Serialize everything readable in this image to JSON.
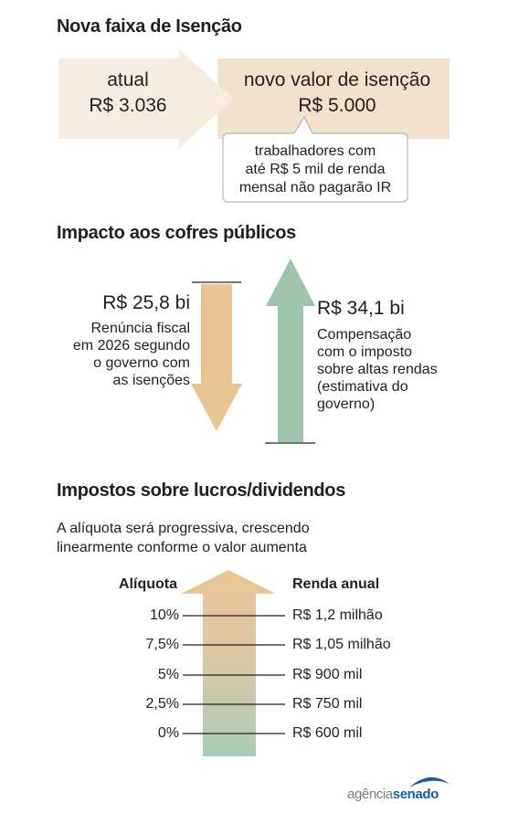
{
  "section1": {
    "title": "Nova faixa de Isenção",
    "current_label": "atual",
    "current_value": "R$ 3.036",
    "new_label": "novo valor de isenção",
    "new_value": "R$ 5.000",
    "note_lines": [
      "trabalhadores com",
      "até R$ 5 mil de renda",
      "mensal não pagarão IR"
    ]
  },
  "section2": {
    "title": "Impacto aos cofres públicos",
    "loss_value": "R$ 25,8 bi",
    "loss_lines": [
      "Renúncia fiscal",
      "em 2026 segundo",
      "o governo com",
      "as isenções"
    ],
    "gain_value": "R$ 34,1 bi",
    "gain_lines": [
      "Compensação",
      "com o imposto",
      "sobre altas rendas",
      "(estimativa do",
      "governo)"
    ]
  },
  "section3": {
    "title": "Impostos sobre lucros/dividendos",
    "subtitle_lines": [
      "A alíquota será progressiva, crescendo",
      "linearmente conforme o valor aumenta"
    ],
    "rate_header": "Alíquota",
    "income_header": "Renda anual",
    "rows": [
      {
        "rate": "10%",
        "income": "R$ 1,2 milhão"
      },
      {
        "rate": "7,5%",
        "income": "R$ 1,05 milhão"
      },
      {
        "rate": "5%",
        "income": "R$ 900 mil"
      },
      {
        "rate": "2,5%",
        "income": "R$ 750 mil"
      },
      {
        "rate": "0%",
        "income": "R$ 600 mil"
      }
    ]
  },
  "logo": {
    "text_light": "agência",
    "text_bold": "senado"
  },
  "colors": {
    "beige_light": "#f7ece0",
    "beige": "#f1e1cd",
    "tan": "#e8c393",
    "green": "#9ec4ad",
    "logo_blue": "#1b5aa6"
  }
}
